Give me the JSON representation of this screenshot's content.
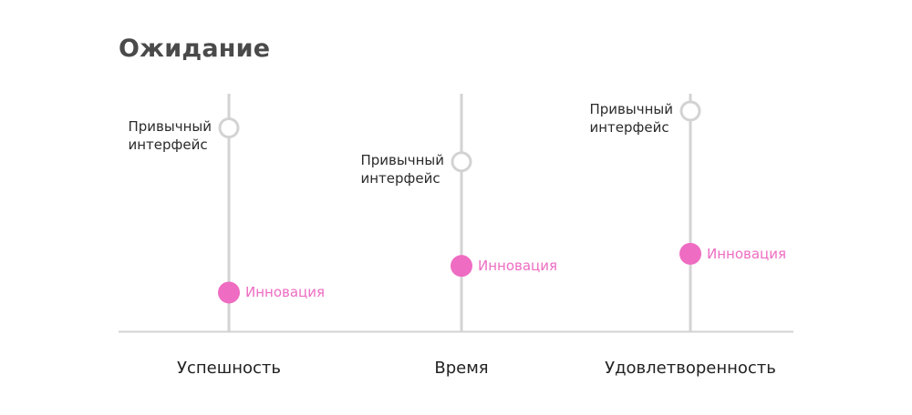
{
  "title": "Ожидание",
  "colors": {
    "axis": "#d3d3d3",
    "innovation": "#ee6cc2",
    "habit_stroke": "#d3d3d3",
    "title": "#4a4a4a"
  },
  "labels": {
    "habit": "Привычный\nинтерфейс",
    "innovation": "Инновация"
  },
  "chart_data": {
    "type": "scatter",
    "title": "Ожидание",
    "categories": [
      "Успешность",
      "Время",
      "Удовлетворенность"
    ],
    "series": [
      {
        "name": "Привычный интерфейс",
        "values": [
          0.84,
          0.7,
          0.91
        ]
      },
      {
        "name": "Инновация",
        "values": [
          0.16,
          0.27,
          0.32
        ]
      }
    ],
    "ylim": [
      0,
      1
    ],
    "grid": false
  }
}
